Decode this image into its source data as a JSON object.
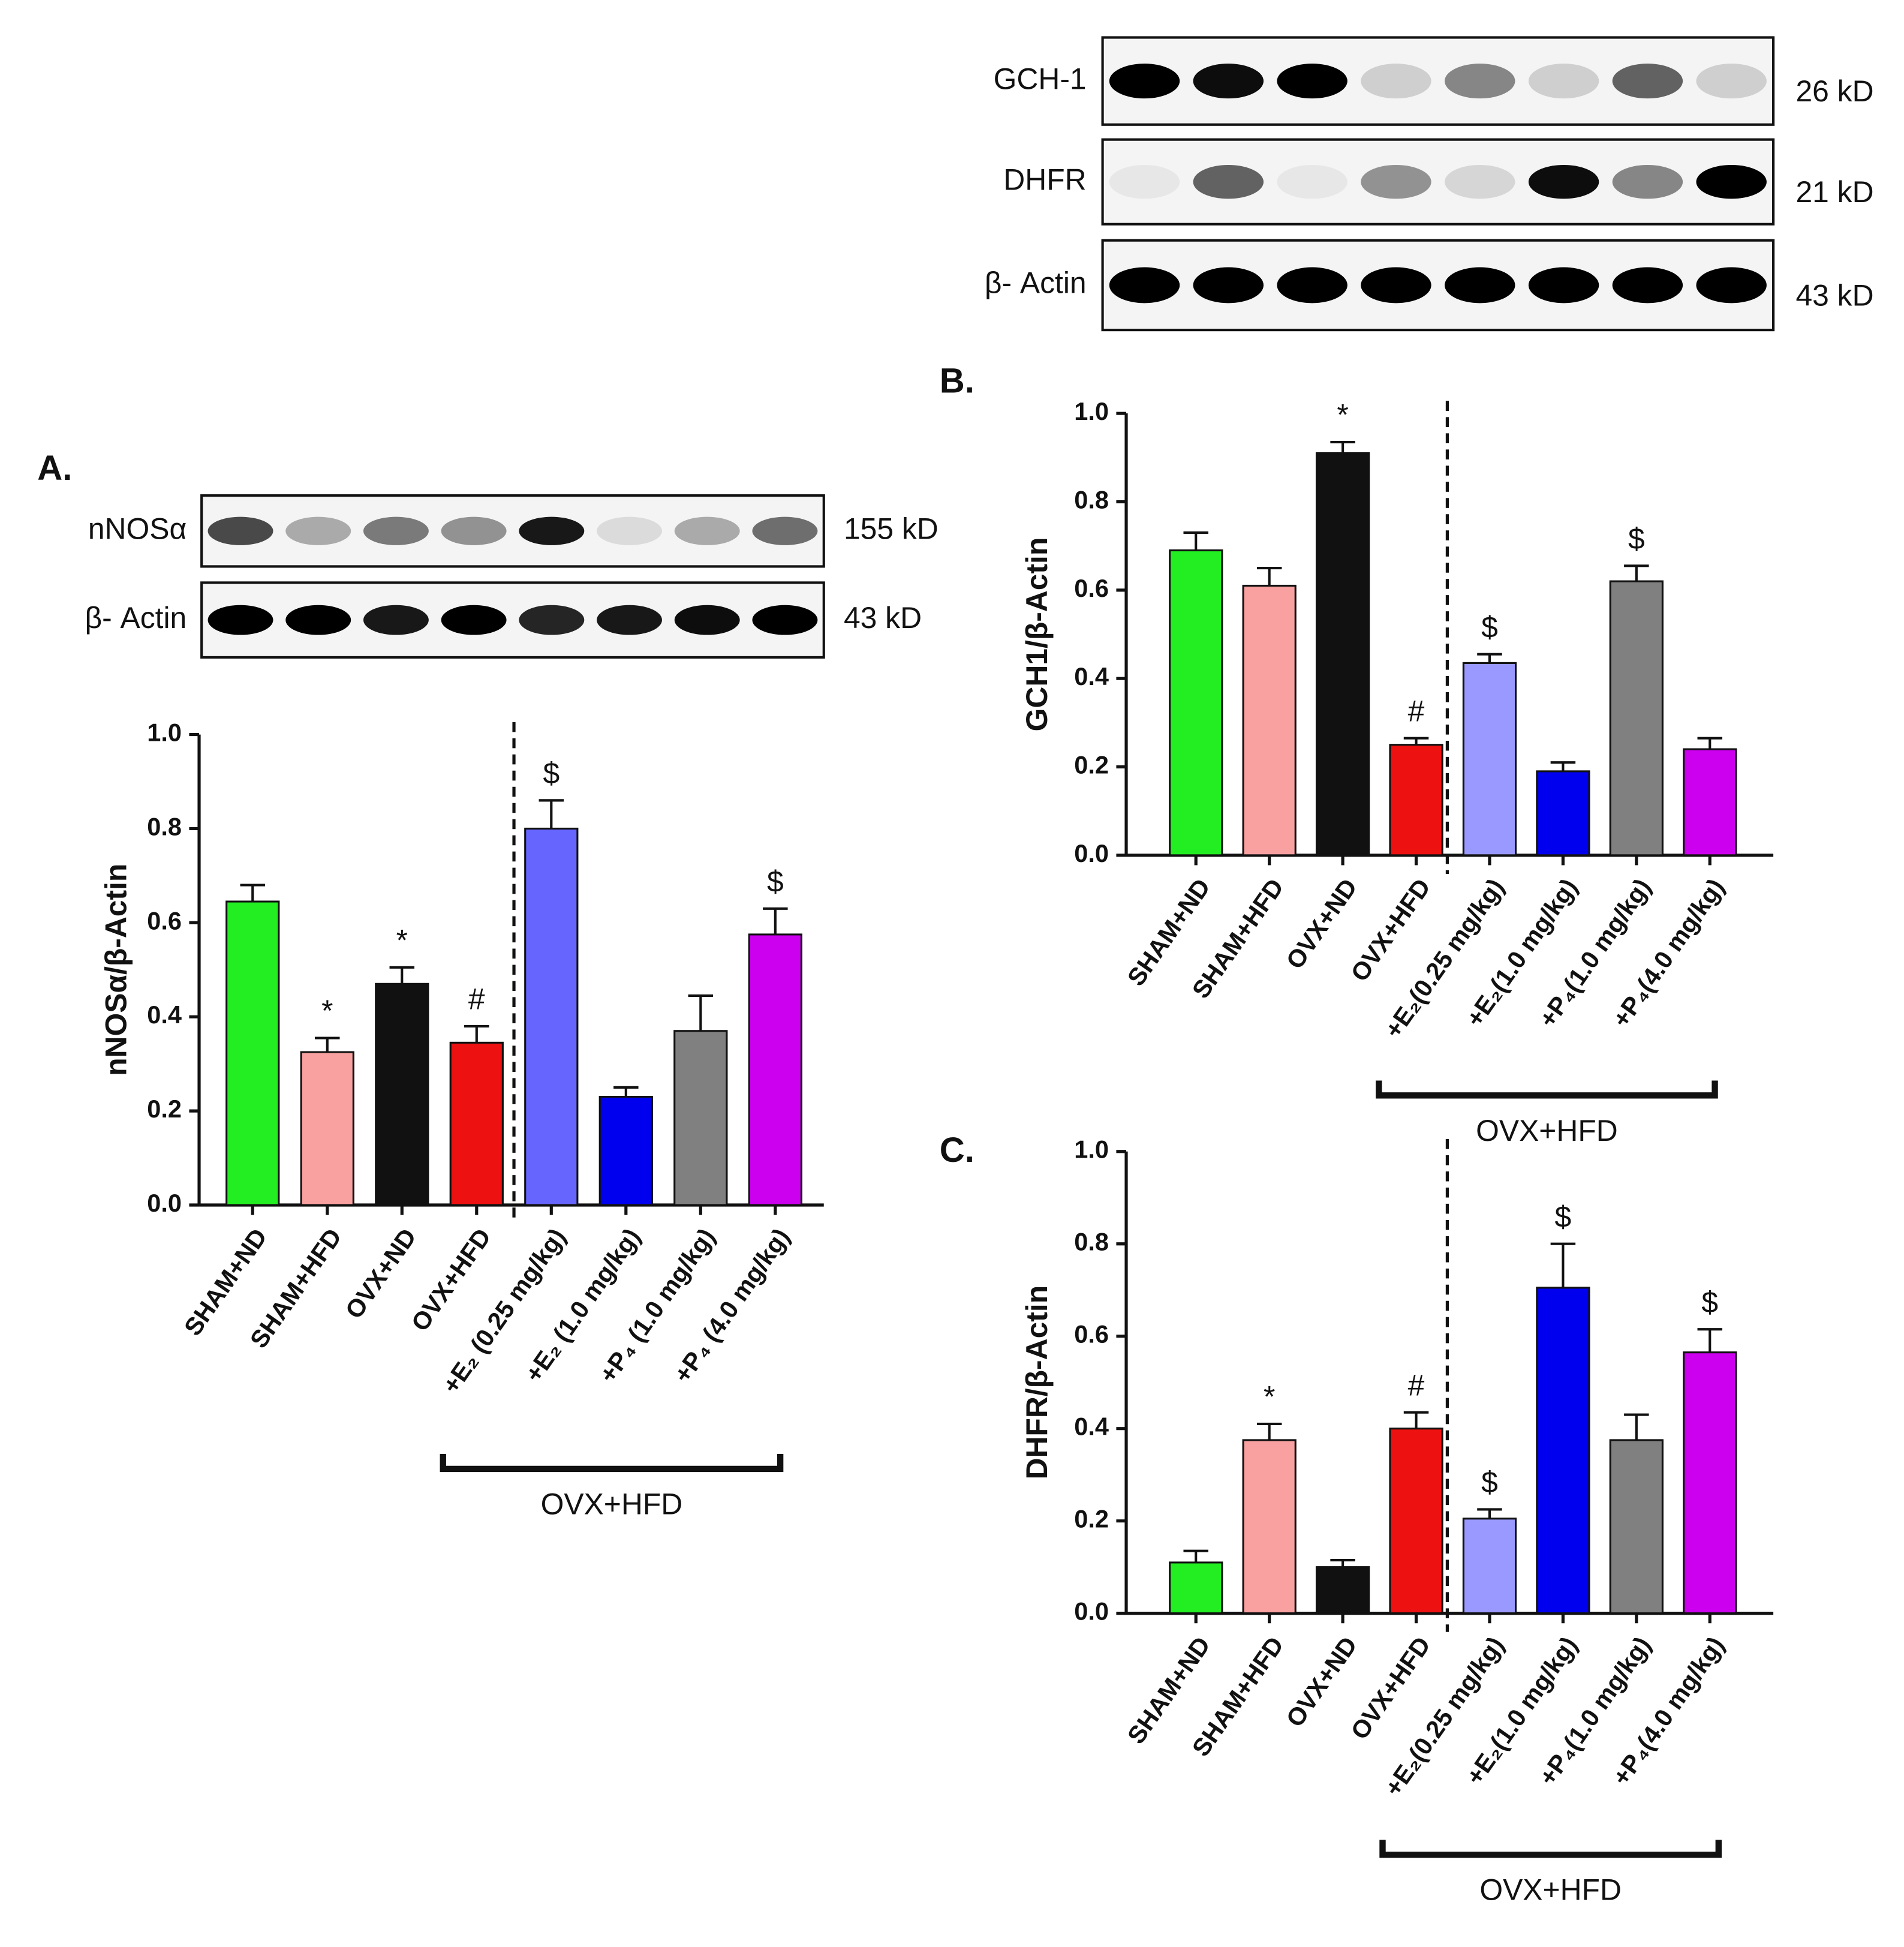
{
  "blots": [
    {
      "rows": [
        {
          "label": "GCH-1",
          "size": "26 kD"
        },
        {
          "label": "DHFR",
          "size": "21 kD"
        },
        {
          "label": "β- Actin",
          "size": "43 kD"
        }
      ]
    },
    {
      "rows": [
        {
          "label": "nNOSα",
          "size": "155 kD"
        },
        {
          "label": "β- Actin",
          "size": "43 kD"
        }
      ]
    }
  ],
  "chart_data": [
    {
      "type": "bar",
      "panel": "A.",
      "y_label": "nNOSα/β-Actin",
      "categories": [
        "SHAM+ND",
        "SHAM+HFD",
        "OVX+ND",
        "OVX+HFD",
        "+E₂ (0.25 mg/kg)",
        "+E₂ (1.0 mg/kg)",
        "+P₄ (1.0 mg/kg)",
        "+P₄ (4.0 mg/kg)"
      ],
      "values": [
        0.645,
        0.325,
        0.47,
        0.345,
        0.8,
        0.23,
        0.37,
        0.575
      ],
      "errors": [
        0.035,
        0.03,
        0.035,
        0.035,
        0.06,
        0.02,
        0.075,
        0.055
      ],
      "markers": [
        null,
        "*",
        "*",
        "#",
        "$",
        null,
        null,
        "$"
      ],
      "colors": [
        "#22ee22",
        "#f9a0a0",
        "#111111",
        "#ee1111",
        "#6666ff",
        "#0000ee",
        "#808080",
        "#cc00ee"
      ],
      "group_label": "OVX+HFD",
      "ylim": [
        0,
        1.0
      ],
      "yticks": [
        {
          "value": 0,
          "label": "0.0"
        },
        {
          "value": 0.2,
          "label": "0.2"
        },
        {
          "value": 0.4,
          "label": "0.4"
        },
        {
          "value": 0.6,
          "label": "0.6"
        },
        {
          "value": 0.8,
          "label": "0.8"
        },
        {
          "value": 1.0,
          "label": "1.0"
        }
      ]
    },
    {
      "type": "bar",
      "panel": "B.",
      "y_label": "GCH1/β-Actin",
      "categories": [
        "SHAM+ND",
        "SHAM+HFD",
        "OVX+ND",
        "OVX+HFD",
        "+E₂(0.25 mg/kg)",
        "+E₂(1.0 mg/kg)",
        "+P₄(1.0 mg/kg)",
        "+P₄(4.0 mg/kg)"
      ],
      "values": [
        0.69,
        0.61,
        0.91,
        0.25,
        0.435,
        0.19,
        0.62,
        0.24
      ],
      "errors": [
        0.04,
        0.04,
        0.025,
        0.015,
        0.02,
        0.02,
        0.035,
        0.025
      ],
      "markers": [
        null,
        null,
        "*",
        "#",
        "$",
        null,
        "$",
        null
      ],
      "colors": [
        "#22ee22",
        "#f9a0a0",
        "#111111",
        "#ee1111",
        "#9999ff",
        "#0000ee",
        "#808080",
        "#cc00ee"
      ],
      "group_label": "OVX+HFD",
      "ylim": [
        0,
        1.0
      ],
      "yticks": [
        {
          "value": 0,
          "label": "0.0"
        },
        {
          "value": 0.2,
          "label": "0.2"
        },
        {
          "value": 0.4,
          "label": "0.4"
        },
        {
          "value": 0.6,
          "label": "0.6"
        },
        {
          "value": 0.8,
          "label": "0.8"
        },
        {
          "value": 1.0,
          "label": "1.0"
        }
      ]
    },
    {
      "type": "bar",
      "panel": "C.",
      "y_label": "DHFR/β-Actin",
      "categories": [
        "SHAM+ND",
        "SHAM+HFD",
        "OVX+ND",
        "OVX+HFD",
        "+E₂(0.25 mg/kg)",
        "+E₂(1.0 mg/kg)",
        "+P₄(1.0 mg/kg)",
        "+P₄(4.0 mg/kg)"
      ],
      "values": [
        0.11,
        0.375,
        0.1,
        0.4,
        0.205,
        0.705,
        0.375,
        0.565
      ],
      "errors": [
        0.025,
        0.035,
        0.015,
        0.035,
        0.02,
        0.095,
        0.055,
        0.05
      ],
      "markers": [
        null,
        "*",
        null,
        "#",
        "$",
        "$",
        null,
        "$"
      ],
      "colors": [
        "#22ee22",
        "#f9a0a0",
        "#111111",
        "#ee1111",
        "#9999ff",
        "#0000ee",
        "#808080",
        "#cc00ee"
      ],
      "group_label": "OVX+HFD",
      "ylim": [
        0,
        1.0
      ],
      "yticks": [
        {
          "value": 0,
          "label": "0.0"
        },
        {
          "value": 0.2,
          "label": "0.2"
        },
        {
          "value": 0.4,
          "label": "0.4"
        },
        {
          "value": 0.6,
          "label": "0.6"
        },
        {
          "value": 0.8,
          "label": "0.8"
        },
        {
          "value": 1.0,
          "label": "1.0"
        }
      ]
    }
  ]
}
